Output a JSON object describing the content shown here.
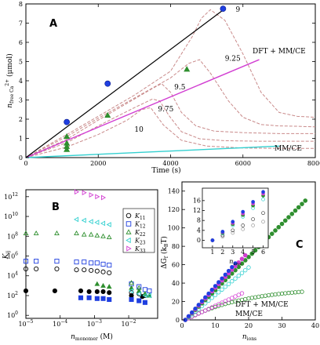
{
  "chart_data": [
    {
      "panel": "A",
      "type": "line",
      "ylabel_prefix": "n",
      "ylabel_sub": "free Ca",
      "ylabel_sup": "2+",
      "ylabel_suffix": " (μmol)",
      "xlabel": "Time (s)",
      "xlim": [
        0,
        8000
      ],
      "ylim": [
        0,
        8
      ],
      "xticks": [
        0,
        2000,
        4000,
        6000,
        8000
      ],
      "yticks": [
        0,
        1,
        2,
        3,
        4,
        5,
        6,
        7,
        8
      ],
      "colors": {
        "black": "#000000",
        "magenta": "#d23fd2",
        "cyan": "#33d0d0",
        "dashed": "#c98a8a",
        "blue": "#1f3fe0",
        "green": "#2f8f2f"
      },
      "black_line": {
        "x": [
          0,
          5500
        ],
        "y": [
          0,
          7.75
        ]
      },
      "blue_points": {
        "x": [
          1130,
          2260,
          5450
        ],
        "y": [
          1.85,
          3.85,
          7.75
        ]
      },
      "magenta_line": {
        "x": [
          0,
          6450
        ],
        "y": [
          0,
          5.1
        ]
      },
      "cyan_line": {
        "x": [
          0,
          7000
        ],
        "y": [
          0,
          0.6
        ]
      },
      "green_points": {
        "x": [
          1130,
          1130,
          1130,
          1130,
          2260,
          4450
        ],
        "y": [
          0.42,
          0.58,
          0.75,
          1.1,
          2.2,
          4.6
        ]
      },
      "dashed_curves": [
        {
          "x": [
            0,
            1130,
            2000,
            3000,
            4000,
            4600,
            4850,
            5100,
            5500,
            6000,
            6500,
            7000,
            7500,
            8000
          ],
          "y": [
            0,
            1.2,
            2.15,
            3.25,
            4.5,
            6.3,
            7.25,
            7.7,
            7.15,
            5.4,
            3.4,
            2.35,
            2.15,
            2.1
          ]
        },
        {
          "x": [
            0,
            1130,
            2000,
            3000,
            4000,
            4500,
            4800,
            5100,
            5600,
            6000,
            6500,
            7000,
            7500,
            8000
          ],
          "y": [
            0,
            1.1,
            2.05,
            3.1,
            4.15,
            4.9,
            5.1,
            4.4,
            2.95,
            2.1,
            1.72,
            1.65,
            1.63,
            1.6
          ]
        },
        {
          "x": [
            0,
            1130,
            2000,
            3000,
            3500,
            3750,
            4000,
            4300,
            4700,
            5200,
            6000,
            7000,
            8000
          ],
          "y": [
            0,
            0.95,
            1.95,
            3.05,
            3.6,
            3.85,
            3.4,
            2.35,
            1.65,
            1.38,
            1.3,
            1.25,
            1.25
          ]
        },
        {
          "x": [
            0,
            1130,
            2000,
            3000,
            3500,
            3700,
            3950,
            4300,
            4800,
            5500,
            6500,
            8000
          ],
          "y": [
            0,
            0.78,
            1.65,
            2.6,
            3.05,
            2.95,
            2.2,
            1.35,
            0.98,
            0.88,
            0.85,
            0.85
          ]
        },
        {
          "x": [
            0,
            1130,
            2000,
            2800,
            3200,
            3450,
            3800,
            4300,
            5000,
            6000,
            7000,
            8000
          ],
          "y": [
            0,
            0.55,
            1.2,
            1.95,
            2.5,
            2.6,
            1.7,
            0.9,
            0.6,
            0.5,
            0.48,
            0.48
          ]
        }
      ],
      "curve_labels": [
        {
          "text": "9",
          "x": 5800,
          "y": 7.6
        },
        {
          "text": "9.25",
          "x": 5500,
          "y": 5.05
        },
        {
          "text": "9.5",
          "x": 4100,
          "y": 3.55
        },
        {
          "text": "9.75",
          "x": 3650,
          "y": 2.4
        },
        {
          "text": "10",
          "x": 3000,
          "y": 1.35
        }
      ],
      "series_labels": {
        "dft": "DFT + MM/CE",
        "mmce": "MM/CE"
      }
    },
    {
      "panel": "B",
      "type": "scatter",
      "ylabel": "K",
      "ylabel_sub": "ij",
      "xlabel": "n",
      "xlabel_sub": "monomer",
      "xlabel_suffix": " (M)",
      "xscale": "log",
      "yscale": "log",
      "xlim": [
        1e-05,
        0.07
      ],
      "ylim": [
        0.5,
        5000000000000.0
      ],
      "xtick_exps": [
        -5,
        -4,
        -3,
        -2
      ],
      "ytick_exps": [
        0,
        2,
        4,
        6,
        8,
        10,
        12
      ],
      "legend_position": "right",
      "series": [
        {
          "name": "K11",
          "marker": "circle",
          "color": "#000000",
          "open": {
            "x": [
              1e-05,
              2e-05,
              8e-05,
              0.0003,
              0.0005,
              0.0008,
              0.0012,
              0.0018,
              0.0027,
              0.012,
              0.02,
              0.03
            ],
            "y": [
              50000.0,
              50000.0,
              50000.0,
              40000.0,
              40000.0,
              35000.0,
              30000.0,
              25000.0,
              20000.0,
              200,
              150,
              100
            ]
          },
          "filled": {
            "x": [
              1e-05,
              7e-05,
              0.0004,
              0.0007,
              0.0012,
              0.0018,
              0.0027,
              0.012,
              0.025
            ],
            "y": [
              300,
              300,
              300,
              250,
              250,
              250,
              200,
              100,
              80
            ]
          }
        },
        {
          "name": "K12",
          "marker": "square",
          "color": "#1f3fe0",
          "open": {
            "x": [
              1e-05,
              2e-05,
              8e-05,
              0.0003,
              0.0005,
              0.0008,
              0.0012,
              0.0018,
              0.0027,
              0.012,
              0.02,
              0.03,
              0.04
            ],
            "y": [
              300000.0,
              300000.0,
              300000.0,
              250000.0,
              250000.0,
              200000.0,
              200000.0,
              150000.0,
              120000.0,
              1500,
              800,
              400,
              300
            ]
          },
          "filled": {
            "x": [
              0.0004,
              0.0007,
              0.0012,
              0.0018,
              0.0027,
              0.012,
              0.02,
              0.03
            ],
            "y": [
              60,
              60,
              50,
              50,
              40,
              40,
              30,
              20
            ]
          }
        },
        {
          "name": "K22",
          "marker": "triangle-up",
          "color": "#2f8f2f",
          "open": {
            "x": [
              1e-05,
              2e-05,
              8e-05,
              0.0003,
              0.0005,
              0.0008,
              0.0012,
              0.0018,
              0.0027,
              0.012,
              0.02,
              0.03
            ],
            "y": [
              200000000.0,
              200000000.0,
              200000000.0,
              200000000.0,
              150000000.0,
              150000000.0,
              120000000.0,
              100000000.0,
              80000000.0,
              2000,
              600,
              150
            ]
          },
          "filled": {
            "x": [
              0.0012,
              0.0018,
              0.0027,
              0.012,
              0.02,
              0.03,
              0.04
            ],
            "y": [
              1500,
              1000,
              800,
              600,
              300,
              150,
              100
            ]
          }
        },
        {
          "name": "K23",
          "marker": "triangle-left",
          "color": "#33d0d0",
          "open": {
            "x": [
              0.0003,
              0.0005,
              0.0008,
              0.0012,
              0.0018,
              0.0027,
              0.012,
              0.02,
              0.03,
              0.04
            ],
            "y": [
              5000000000.0,
              4000000000.0,
              3000000000.0,
              2500000000.0,
              2000000000.0,
              1500000000.0,
              300,
              150,
              100,
              100
            ]
          }
        },
        {
          "name": "K33",
          "marker": "triangle-right",
          "color": "#d23fd2",
          "open": {
            "x": [
              0.0003,
              0.0005,
              0.0008,
              0.0012,
              0.0018
            ],
            "y": [
              3000000000000.0,
              2500000000000.0,
              1500000000000.0,
              1000000000000.0,
              800000000000.0
            ]
          }
        }
      ]
    },
    {
      "panel": "C",
      "type": "scatter",
      "ylabel": "ΔG",
      "ylabel_sub": "f",
      "ylabel_mid": " (k",
      "ylabel_sub2": "B",
      "ylabel_end": "T)",
      "xlabel": "n",
      "xlabel_sub": "ions",
      "xlim": [
        0,
        40
      ],
      "ylim": [
        0,
        150
      ],
      "xticks": [
        0,
        10,
        20,
        30,
        40
      ],
      "yticks": [
        0,
        20,
        40,
        60,
        80,
        100,
        120,
        140
      ],
      "colors": {
        "green": "#2f8f2f",
        "magenta": "#d23fd2",
        "cyan": "#33d0d0",
        "blue": "#1f3fe0",
        "black": "#000000"
      },
      "series_green_filled": {
        "n_max": 37,
        "slope": 3.6
      },
      "series_magenta_filled": {
        "n_max": 19,
        "slope": 3.9
      },
      "series_blue_filled": {
        "n_max": 16,
        "slope": 4.1
      },
      "series_cyan_open": {
        "n_max": 20,
        "slope": 3.0
      },
      "series_magenta_open": {
        "n_max": 18,
        "slope": 1.7
      },
      "series_green_open": {
        "n_max": 36,
        "k": 17,
        "tau": 18
      },
      "series_labels": {
        "dft": "DFT + MM/CE",
        "mmce": "MM/CE"
      },
      "inset": {
        "xlabel": "n",
        "xlabel_sub": "ions",
        "xlim": [
          0,
          6.5
        ],
        "ylim": [
          -3,
          21
        ],
        "xticks": [
          1,
          2,
          3,
          4,
          5,
          6
        ],
        "yticks": [
          0,
          4,
          8,
          12,
          16
        ],
        "x": [
          1,
          2,
          3,
          4,
          5,
          6
        ],
        "filled_green": [
          0,
          3,
          6.5,
          10.2,
          14,
          18
        ],
        "filled_blue": [
          0,
          3.5,
          7.5,
          11.5,
          15.5,
          19.5
        ],
        "filled_magenta": [
          0,
          3.3,
          7,
          10.8,
          14.8,
          18.8
        ],
        "open_cyan": [
          0,
          2.8,
          6,
          9.5,
          13,
          16.5
        ],
        "open_black": [
          0,
          2,
          4,
          6,
          8.5,
          11
        ],
        "open_gray": [
          0,
          1.5,
          3,
          4.5,
          6,
          7.5
        ]
      }
    }
  ]
}
